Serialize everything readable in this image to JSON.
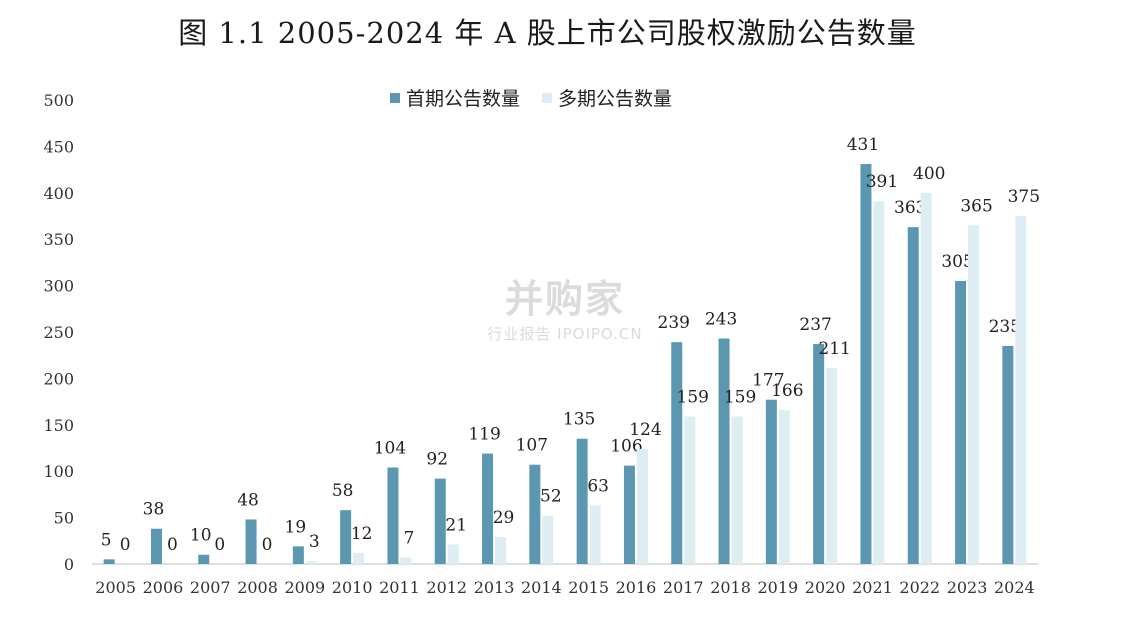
{
  "chart_data": {
    "type": "bar",
    "title": "图 1.1  2005-2024 年 A 股上市公司股权激励公告数量",
    "categories": [
      "2005",
      "2006",
      "2007",
      "2008",
      "2009",
      "2010",
      "2011",
      "2012",
      "2013",
      "2014",
      "2015",
      "2016",
      "2017",
      "2018",
      "2019",
      "2020",
      "2021",
      "2022",
      "2023",
      "2024"
    ],
    "series": [
      {
        "name": "首期公告数量",
        "color": "#5b97b0",
        "values": [
          5,
          38,
          10,
          48,
          19,
          58,
          104,
          92,
          119,
          107,
          135,
          106,
          239,
          243,
          177,
          237,
          431,
          363,
          305,
          235
        ]
      },
      {
        "name": "多期公告数量",
        "color": "#deedf3",
        "values": [
          0,
          0,
          0,
          0,
          3,
          12,
          7,
          21,
          29,
          52,
          63,
          124,
          159,
          159,
          166,
          211,
          391,
          400,
          365,
          375
        ]
      }
    ],
    "ylim": [
      0,
      500
    ],
    "yticks": [
      0,
      50,
      100,
      150,
      200,
      250,
      300,
      350,
      400,
      450,
      500
    ],
    "legend_position": "top-center",
    "grid": false
  },
  "watermark": {
    "main": "并购家",
    "sub": "行业报告 IPOIPO.CN"
  }
}
